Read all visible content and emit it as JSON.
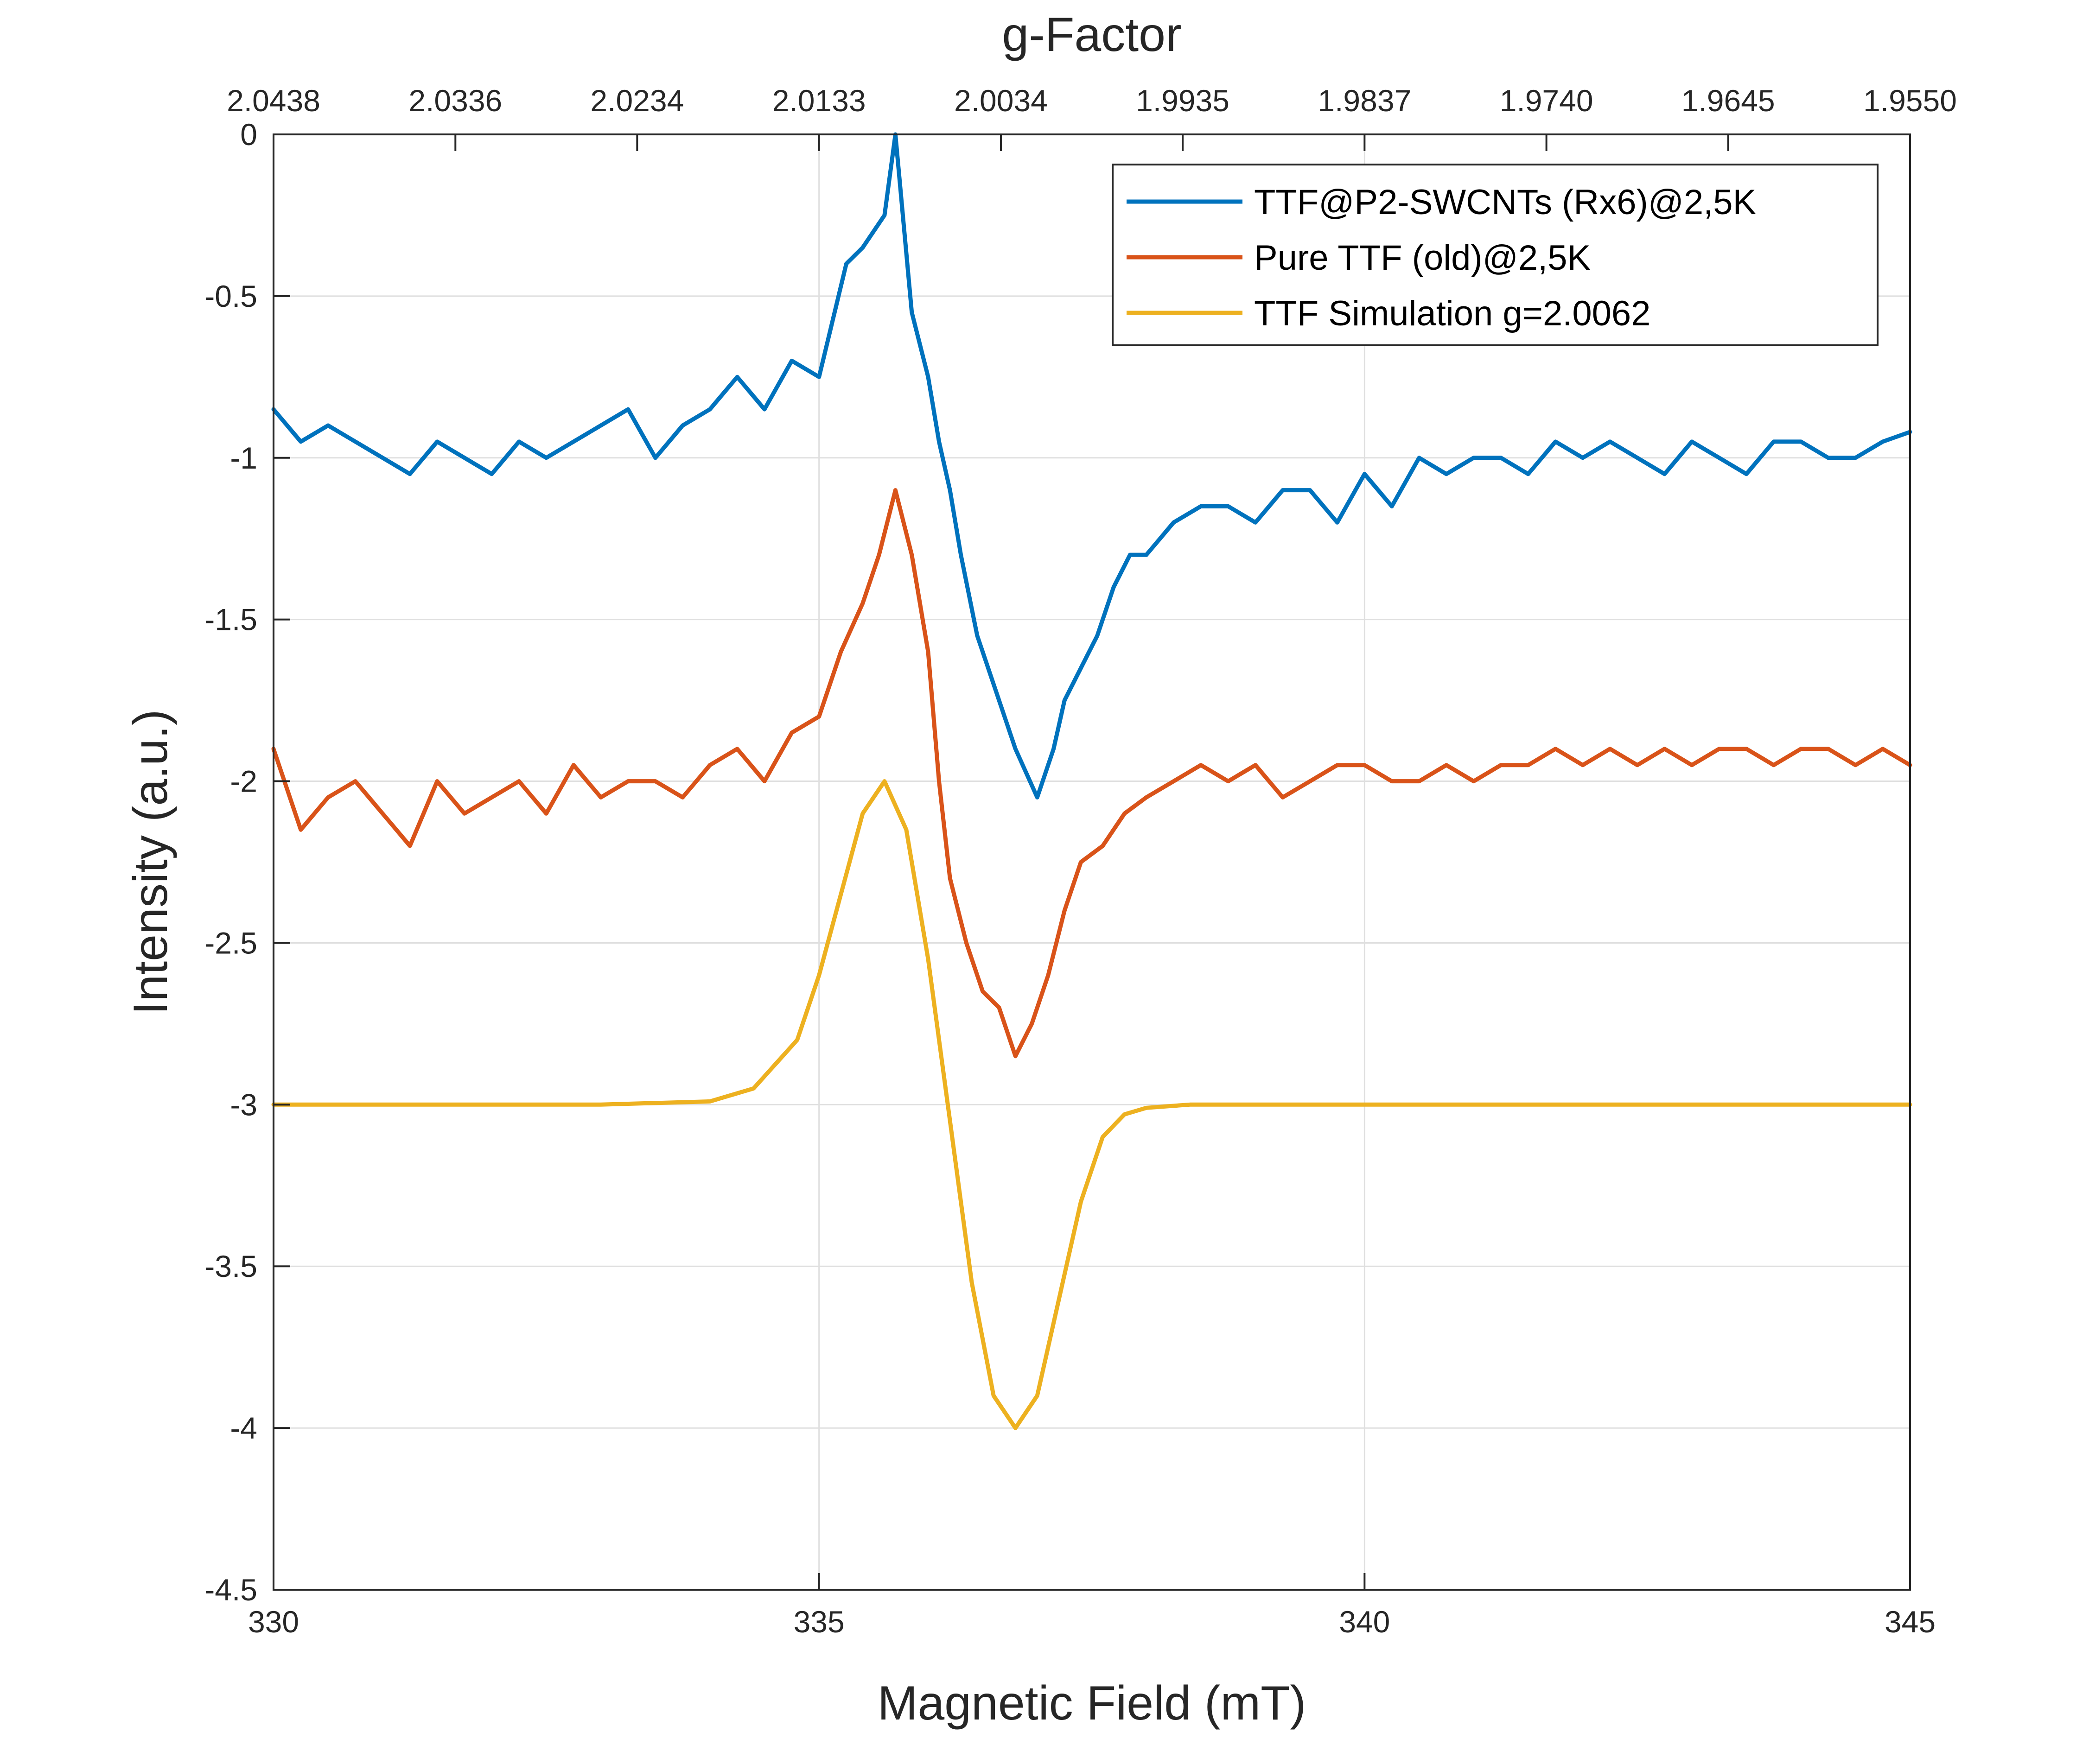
{
  "chart_data": {
    "type": "line",
    "title": "",
    "xlabel": "Magnetic Field (mT)",
    "ylabel": "Intensity (a.u.)",
    "top_axis_label": "g-Factor",
    "xlim": [
      330,
      345
    ],
    "ylim": [
      -4.5,
      0
    ],
    "grid": true,
    "legend_position": "top-right",
    "x_ticks": [
      330,
      335,
      340,
      345
    ],
    "x_tick_labels": [
      "330",
      "335",
      "340",
      "345"
    ],
    "y_ticks": [
      0,
      -0.5,
      -1,
      -1.5,
      -2,
      -2.5,
      -3,
      -3.5,
      -4,
      -4.5
    ],
    "y_tick_labels": [
      "0",
      "-0.5",
      "-1",
      "-1.5",
      "-2",
      "-2.5",
      "-3",
      "-3.5",
      "-4",
      "-4.5"
    ],
    "top_ticks": [
      330,
      331.667,
      333.333,
      335,
      336.667,
      338.333,
      340,
      341.667,
      343.333,
      345
    ],
    "top_tick_labels": [
      "2.0438",
      "2.0336",
      "2.0234",
      "2.0133",
      "2.0034",
      "1.9935",
      "1.9837",
      "1.9740",
      "1.9645",
      "1.9550"
    ],
    "series": [
      {
        "name": "TTF@P2-SWCNTs (Rx6)@2,5K",
        "color": "#0072BD",
        "x": [
          330,
          330.25,
          330.5,
          330.75,
          331,
          331.25,
          331.5,
          331.75,
          332,
          332.25,
          332.5,
          332.75,
          333,
          333.25,
          333.5,
          333.75,
          334,
          334.25,
          334.5,
          334.75,
          335,
          335.25,
          335.4,
          335.5,
          335.6,
          335.7,
          335.85,
          336,
          336.1,
          336.2,
          336.3,
          336.45,
          336.6,
          336.8,
          337,
          337.15,
          337.25,
          337.4,
          337.55,
          337.7,
          337.85,
          338,
          338.25,
          338.5,
          338.75,
          339,
          339.25,
          339.5,
          339.75,
          340,
          340.25,
          340.5,
          340.75,
          341,
          341.25,
          341.5,
          341.75,
          342,
          342.25,
          342.5,
          342.75,
          343,
          343.25,
          343.5,
          343.75,
          344,
          344.25,
          344.5,
          344.75,
          345
        ],
        "values": [
          -0.85,
          -0.95,
          -0.9,
          -0.95,
          -1.0,
          -1.05,
          -0.95,
          -1.0,
          -1.05,
          -0.95,
          -1.0,
          -0.95,
          -0.9,
          -0.85,
          -1.0,
          -0.9,
          -0.85,
          -0.75,
          -0.85,
          -0.7,
          -0.75,
          -0.4,
          -0.35,
          -0.3,
          -0.25,
          0.0,
          -0.55,
          -0.75,
          -0.95,
          -1.1,
          -1.3,
          -1.55,
          -1.7,
          -1.9,
          -2.05,
          -1.9,
          -1.75,
          -1.65,
          -1.55,
          -1.4,
          -1.3,
          -1.3,
          -1.2,
          -1.15,
          -1.15,
          -1.2,
          -1.1,
          -1.1,
          -1.2,
          -1.05,
          -1.15,
          -1.0,
          -1.05,
          -1.0,
          -1.0,
          -1.05,
          -0.95,
          -1.0,
          -0.95,
          -1.0,
          -1.05,
          -0.95,
          -1.0,
          -1.05,
          -0.95,
          -0.95,
          -1.0,
          -1.0,
          -0.95,
          -0.92
        ]
      },
      {
        "name": "Pure TTF (old)@2,5K",
        "color": "#D95319",
        "x": [
          330,
          330.25,
          330.5,
          330.75,
          331,
          331.25,
          331.5,
          331.75,
          332,
          332.25,
          332.5,
          332.75,
          333,
          333.25,
          333.5,
          333.75,
          334,
          334.25,
          334.5,
          334.75,
          335,
          335.2,
          335.4,
          335.55,
          335.7,
          335.85,
          336,
          336.1,
          336.2,
          336.35,
          336.5,
          336.65,
          336.8,
          336.95,
          337.1,
          337.25,
          337.4,
          337.6,
          337.8,
          338,
          338.25,
          338.5,
          338.75,
          339,
          339.25,
          339.5,
          339.75,
          340,
          340.25,
          340.5,
          340.75,
          341,
          341.25,
          341.5,
          341.75,
          342,
          342.25,
          342.5,
          342.75,
          343,
          343.25,
          343.5,
          343.75,
          344,
          344.25,
          344.5,
          344.75,
          345
        ],
        "values": [
          -1.9,
          -2.15,
          -2.05,
          -2.0,
          -2.1,
          -2.2,
          -2.0,
          -2.1,
          -2.05,
          -2.0,
          -2.1,
          -1.95,
          -2.05,
          -2.0,
          -2.0,
          -2.05,
          -1.95,
          -1.9,
          -2.0,
          -1.85,
          -1.8,
          -1.6,
          -1.45,
          -1.3,
          -1.1,
          -1.3,
          -1.6,
          -2.0,
          -2.3,
          -2.5,
          -2.65,
          -2.7,
          -2.85,
          -2.75,
          -2.6,
          -2.4,
          -2.25,
          -2.2,
          -2.1,
          -2.05,
          -2.0,
          -1.95,
          -2.0,
          -1.95,
          -2.05,
          -2.0,
          -1.95,
          -1.95,
          -2.0,
          -2.0,
          -1.95,
          -2.0,
          -1.95,
          -1.95,
          -1.9,
          -1.95,
          -1.9,
          -1.95,
          -1.9,
          -1.95,
          -1.9,
          -1.9,
          -1.95,
          -1.9,
          -1.9,
          -1.95,
          -1.9,
          -1.95
        ]
      },
      {
        "name": "TTF Simulation g=2.0062",
        "color": "#EDB120",
        "x": [
          330,
          333,
          334,
          334.4,
          334.8,
          335.0,
          335.2,
          335.4,
          335.6,
          335.8,
          336.0,
          336.2,
          336.4,
          336.6,
          336.8,
          337.0,
          337.2,
          337.4,
          337.6,
          337.8,
          338.0,
          338.4,
          339,
          345
        ],
        "values": [
          -3.0,
          -3.0,
          -2.99,
          -2.95,
          -2.8,
          -2.6,
          -2.35,
          -2.1,
          -2.0,
          -2.15,
          -2.55,
          -3.05,
          -3.55,
          -3.9,
          -4.0,
          -3.9,
          -3.6,
          -3.3,
          -3.1,
          -3.03,
          -3.01,
          -3.0,
          -3.0,
          -3.0
        ]
      }
    ]
  }
}
